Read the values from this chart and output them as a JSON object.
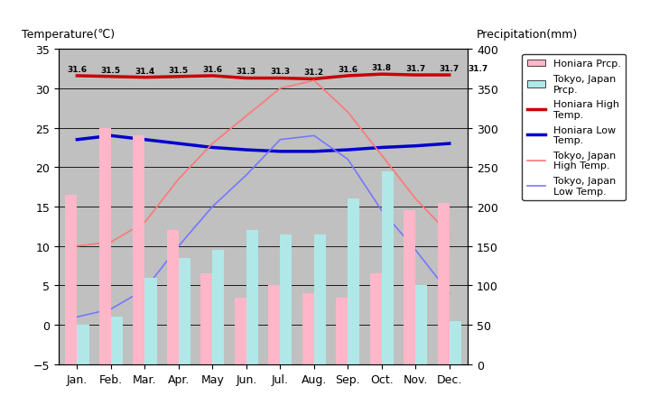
{
  "months": [
    "Jan.",
    "Feb.",
    "Mar.",
    "Apr.",
    "May",
    "Jun.",
    "Jul.",
    "Aug.",
    "Sep.",
    "Oct.",
    "Nov.",
    "Dec."
  ],
  "honiara_prcp": [
    215,
    300,
    290,
    170,
    115,
    85,
    100,
    90,
    85,
    115,
    195,
    205
  ],
  "tokyo_prcp": [
    50,
    60,
    110,
    135,
    145,
    170,
    165,
    165,
    210,
    245,
    100,
    55
  ],
  "honiara_high": [
    31.6,
    31.5,
    31.4,
    31.5,
    31.6,
    31.3,
    31.3,
    31.2,
    31.6,
    31.8,
    31.7,
    31.7
  ],
  "honiara_low": [
    23.5,
    24.0,
    23.5,
    23.0,
    22.5,
    22.2,
    22.0,
    22.0,
    22.2,
    22.5,
    22.7,
    23.0
  ],
  "tokyo_high": [
    10.0,
    10.5,
    13.0,
    18.5,
    23.0,
    26.5,
    30.0,
    31.0,
    27.0,
    21.5,
    16.0,
    11.5
  ],
  "tokyo_low": [
    1.0,
    2.0,
    4.5,
    10.0,
    15.0,
    19.0,
    23.5,
    24.0,
    21.0,
    14.5,
    9.5,
    4.0
  ],
  "honiara_high_labels": [
    "31.6",
    "31.5",
    "31.4",
    "31.5",
    "31.6",
    "31.3",
    "31.3",
    "31.2",
    "31.6",
    "31.8",
    "31.7",
    "31.7"
  ],
  "extra_label": "31.7",
  "bar_width": 0.35,
  "honiara_bar_color": "#FFB6C8",
  "tokyo_bar_color": "#B0E8E8",
  "honiara_high_color": "#CC0000",
  "honiara_low_color": "#0000CC",
  "tokyo_high_color": "#FF7777",
  "tokyo_low_color": "#7777FF",
  "bg_color": "#C0C0C0",
  "fig_bg": "#FFFFFF",
  "ylim_left": [
    -5,
    35
  ],
  "ylim_right": [
    0,
    400
  ],
  "title_left": "Temperature(℃)",
  "title_right": "Precipitation(mm)",
  "legend_labels": [
    "Honiara Prcp.",
    "Tokyo, Japan\nPrcp.",
    "Honiara High\nTemp.",
    "Honiara Low\nTemp.",
    "Tokyo, Japan\nHigh Temp.",
    "Tokyo, Japan\nLow Temp."
  ],
  "yticks_left": [
    -5,
    0,
    5,
    10,
    15,
    20,
    25,
    30,
    35
  ],
  "yticks_right": [
    0,
    50,
    100,
    150,
    200,
    250,
    300,
    350,
    400
  ],
  "figsize": [
    7.2,
    4.6
  ],
  "dpi": 100
}
